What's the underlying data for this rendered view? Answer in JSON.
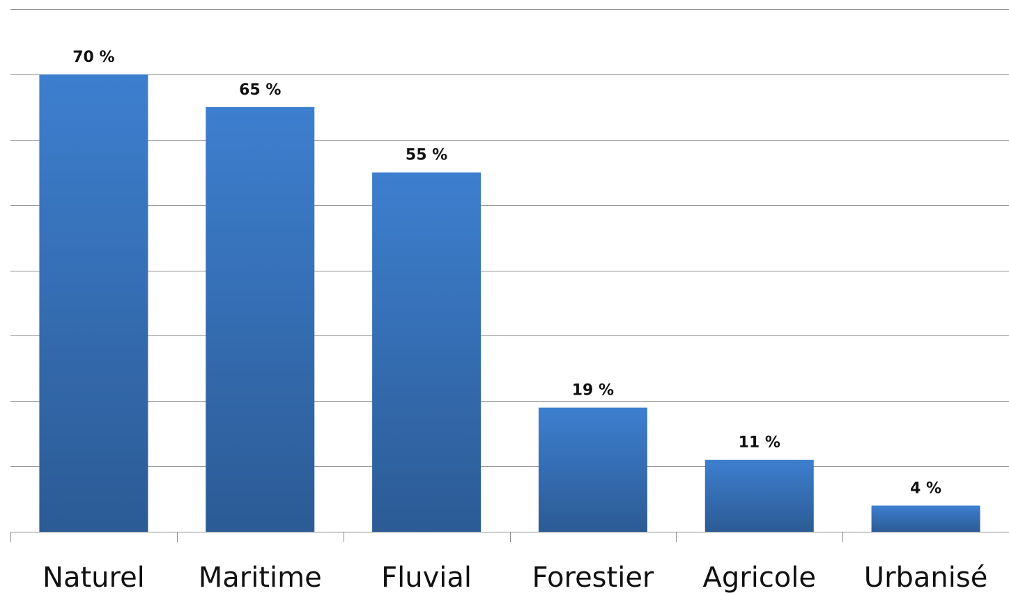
{
  "chart_data": {
    "type": "bar",
    "categories": [
      "Naturel",
      "Maritime",
      "Fluvial",
      "Forestier",
      "Agricole",
      "Urbanisé"
    ],
    "values": [
      70,
      65,
      55,
      19,
      11,
      4
    ],
    "data_labels": [
      "70 %",
      "65 %",
      "55 %",
      "19 %",
      "11 %",
      "4 %"
    ],
    "title": "",
    "xlabel": "",
    "ylabel": "",
    "ylim": [
      0,
      80
    ],
    "grid": true,
    "legend": "none",
    "colors": {
      "bar_top": "#3d7fcf",
      "bar_bottom": "#2c5b95",
      "grid": "#8c8c8c",
      "axis": "#8c8c8c",
      "text": "#111111"
    }
  }
}
